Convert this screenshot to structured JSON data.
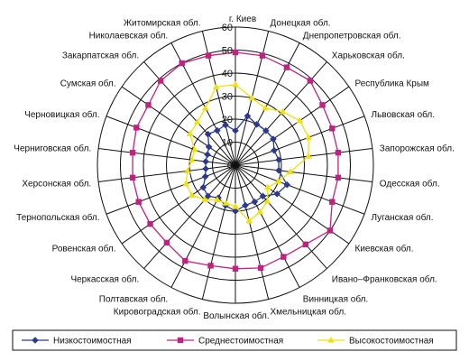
{
  "chart_data": {
    "type": "radar",
    "categories": [
      "г. Киев",
      "Донецкая обл.",
      "Днепропетровская обл.",
      "Харьковская обл.",
      "Республика Крым",
      "Львовская обл.",
      "Запорожская обл.",
      "Одесская обл.",
      "Луганская обл.",
      "Киевская обл.",
      "Ивано–Франковская обл.",
      "Винницкая обл.",
      "Хмельницкая обл.",
      "Волынская обл.",
      "Кировоградская обл.",
      "Полтавская обл.",
      "Черкасская обл.",
      "Ровенская обл.",
      "Тернопольская обл.",
      "Херсонская обл.",
      "Черниговская обл.",
      "Черновицкая обл.",
      "Сумская обл.",
      "Закарпатская обл.",
      "Николаевская обл.",
      "Житомирская обл."
    ],
    "series": [
      {
        "name": "Низкостоимостная",
        "color": "#2b3a8f",
        "marker": "diamond",
        "values": [
          15,
          22,
          20,
          20,
          20,
          18,
          19,
          19,
          24,
          22,
          18,
          18,
          18,
          20,
          18,
          16,
          18,
          17,
          14,
          13,
          13,
          13,
          14,
          18,
          17,
          18
        ]
      },
      {
        "name": "Среднестоимостная",
        "color": "#c0227f",
        "marker": "square",
        "values": [
          49,
          49,
          48,
          49,
          46,
          45,
          45,
          45,
          45,
          50,
          46,
          45,
          46,
          45,
          45,
          47,
          45,
          45,
          45,
          45,
          45,
          46,
          46,
          49,
          50,
          49
        ]
      },
      {
        "name": "Высокостоимостная",
        "color": "#f0e10c",
        "marker": "triangle",
        "values": [
          35,
          30,
          28,
          31,
          34,
          34,
          32,
          24,
          20,
          17,
          21,
          23,
          25,
          18,
          17,
          17,
          20,
          23,
          23,
          21,
          19,
          19,
          24,
          25,
          28,
          35
        ]
      }
    ],
    "rlim": [
      0,
      60
    ],
    "rticks": [
      0,
      10,
      20,
      30,
      40,
      50,
      60
    ],
    "legend_position": "bottom",
    "grid": true
  }
}
